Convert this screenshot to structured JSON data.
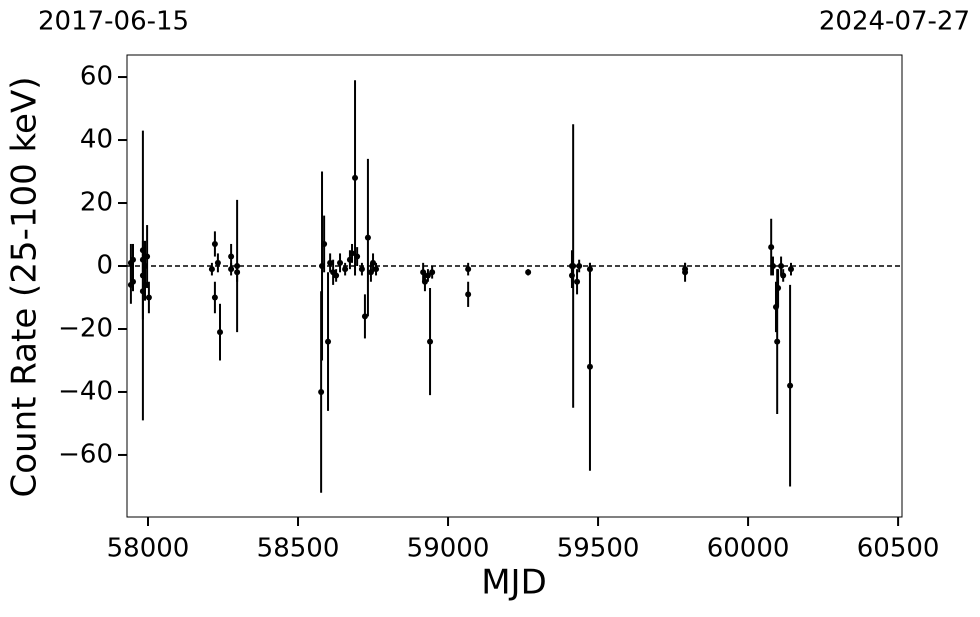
{
  "chart_data": {
    "type": "errorbar",
    "top_left_label": "2017-06-15",
    "top_right_label": "2024-07-27",
    "xlabel": "MJD",
    "ylabel": "Count Rate (25-100 keV)",
    "color": "#000000",
    "reference_line": 0,
    "xlim": [
      57930,
      60513
    ],
    "ylim": [
      -79.7,
      67
    ],
    "xticks": [
      58000,
      58500,
      59000,
      59500,
      60000,
      60500
    ],
    "yticks": [
      {
        "value": -60,
        "label": "−60"
      },
      {
        "value": -40,
        "label": "−40"
      },
      {
        "value": -20,
        "label": "−20"
      },
      0,
      20,
      40,
      60
    ],
    "x": [
      57943,
      57943,
      57950,
      57950,
      57983,
      57983,
      57983,
      57983,
      57990,
      57990,
      57997,
      58003,
      58213,
      58223,
      58223,
      58233,
      58240,
      58277,
      58277,
      58297,
      58297,
      58577,
      58580,
      58587,
      58600,
      58607,
      58617,
      58627,
      58640,
      58657,
      58673,
      58680,
      58690,
      58697,
      58713,
      58723,
      58733,
      58743,
      58750,
      58760,
      58917,
      58923,
      58933,
      58940,
      58947,
      59067,
      59067,
      59267,
      59413,
      59413,
      59417,
      59430,
      59437,
      59473,
      59473,
      59790,
      59790,
      60077,
      60083,
      60093,
      60097,
      60100,
      60110,
      60117,
      60140,
      60143
    ],
    "values": [
      1,
      -6,
      2,
      -5,
      -3,
      5,
      -8,
      2,
      0,
      -6,
      3,
      -10,
      -1,
      7,
      -10,
      1,
      -21,
      3,
      -1,
      0,
      -2,
      -40,
      0,
      7,
      -24,
      1,
      -2,
      -3,
      1,
      -1,
      2,
      4,
      28,
      3,
      -1,
      -16,
      9,
      -2,
      1,
      -1,
      -2,
      -5,
      -3,
      -24,
      -2,
      -1,
      -9,
      -2,
      0,
      -3,
      0,
      -5,
      0,
      -32,
      -1,
      -1,
      -2,
      6,
      0,
      -13,
      -24,
      -7,
      0,
      -3,
      -38,
      -1
    ],
    "errors": [
      6,
      6,
      5,
      3,
      46,
      3,
      9,
      4,
      8,
      5,
      10,
      5,
      2,
      4,
      5,
      3,
      9,
      4,
      2,
      21,
      3,
      32,
      30,
      9,
      22,
      3,
      4,
      2,
      3,
      2,
      3,
      3,
      31,
      3,
      2,
      7,
      25,
      3,
      3,
      2,
      3,
      3,
      2,
      17,
      2,
      2,
      4,
      1,
      5,
      4,
      45,
      4,
      2,
      33,
      2,
      2,
      3,
      9,
      3,
      8,
      23,
      6,
      3,
      2,
      32,
      2
    ]
  }
}
